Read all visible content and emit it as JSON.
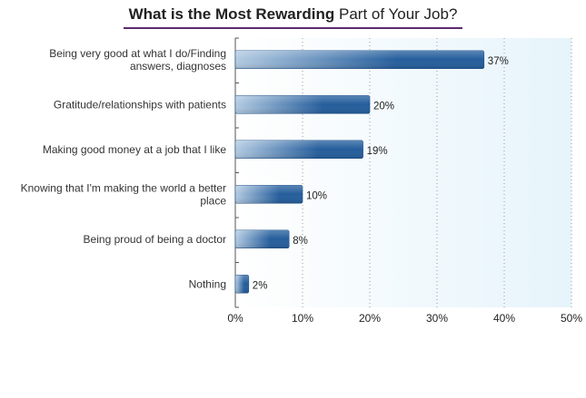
{
  "chart_data": {
    "type": "bar",
    "orientation": "horizontal",
    "title_bold": "What is the Most Rewarding",
    "title_light": "Part of Your Job?",
    "categories": [
      [
        "Being very good at what I do/Finding",
        "answers, diagnoses"
      ],
      [
        "Gratitude/relationships with patients"
      ],
      [
        "Making good money at a job that I like"
      ],
      [
        "Knowing that I'm making the world a better",
        "place"
      ],
      [
        "Being proud of being a doctor"
      ],
      [
        "Nothing"
      ]
    ],
    "values": [
      37,
      20,
      19,
      10,
      8,
      2
    ],
    "data_labels": [
      "37%",
      "20%",
      "19%",
      "10%",
      "8%",
      "2%"
    ],
    "xlim": [
      0,
      50
    ],
    "xticks": [
      0,
      10,
      20,
      30,
      40,
      50
    ],
    "xtick_labels": [
      "0%",
      "10%",
      "20%",
      "30%",
      "40%",
      "50%"
    ],
    "grid": "vertical dotted",
    "colors": {
      "bar_dark": "#255e9c",
      "bar_light": "#b3cbe2",
      "plot_bg_left": "#ffffff",
      "plot_bg_right": "#e6f4fb",
      "title_rule": "#5b2a6e"
    }
  }
}
